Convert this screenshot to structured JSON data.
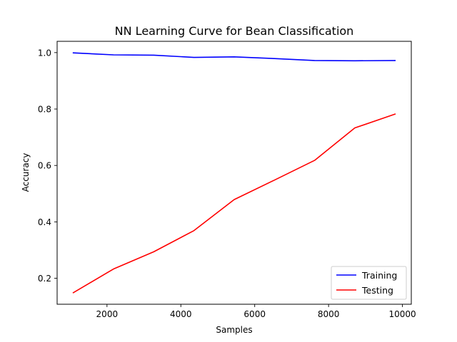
{
  "chart_data": {
    "type": "line",
    "title": "NN Learning Curve for Bean Classification",
    "xlabel": "Samples",
    "ylabel": "Accuracy",
    "x": [
      1088,
      2177,
      3266,
      4355,
      5444,
      6533,
      7622,
      8711,
      9800
    ],
    "xlim": [
      650,
      10240
    ],
    "ylim": [
      0.108,
      1.04
    ],
    "xticks": [
      2000,
      4000,
      6000,
      8000,
      10000
    ],
    "yticks": [
      0.2,
      0.4,
      0.6,
      0.8,
      1.0
    ],
    "xtick_labels": [
      "2000",
      "4000",
      "6000",
      "8000",
      "10000"
    ],
    "ytick_labels": [
      "0.2",
      "0.4",
      "0.6",
      "0.8",
      "1.0"
    ],
    "grid": false,
    "legend_position": "lower-right",
    "series": [
      {
        "name": "Training",
        "color": "#0000ff",
        "values": [
          0.999,
          0.992,
          0.991,
          0.983,
          0.985,
          0.979,
          0.972,
          0.971,
          0.972
        ]
      },
      {
        "name": "Testing",
        "color": "#ff0000",
        "values": [
          0.149,
          0.233,
          0.294,
          0.369,
          0.479,
          0.548,
          0.618,
          0.733,
          0.782
        ]
      }
    ]
  }
}
